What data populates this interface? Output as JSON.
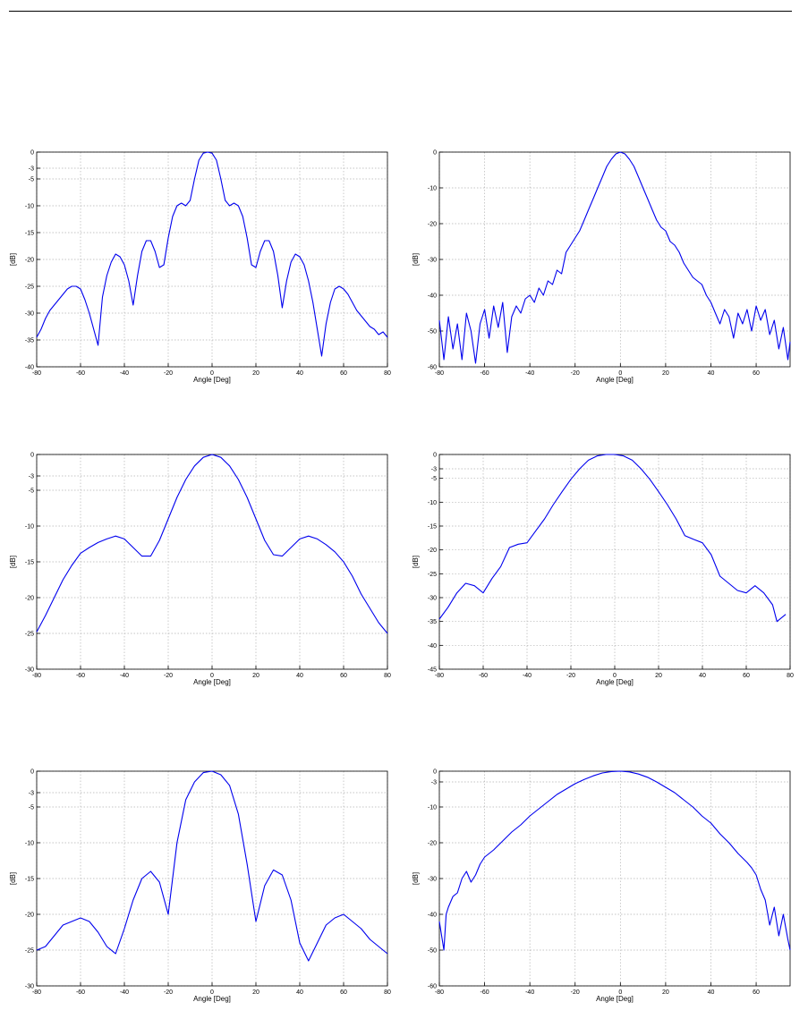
{
  "header": {
    "rule": true
  },
  "chart_data": [
    {
      "type": "line",
      "xlabel": "Angle [Deg]",
      "ylabel": "[dB]",
      "xlim": [
        -80,
        80
      ],
      "ylim": [
        -40,
        0
      ],
      "xticks": [
        -80,
        -60,
        -40,
        -20,
        0,
        20,
        40,
        60,
        80
      ],
      "yticks": [
        0,
        -3,
        -5,
        -10,
        -15,
        -20,
        -25,
        -30,
        -35,
        -40
      ],
      "grid": true,
      "line_color": "#0000ee",
      "series": [
        {
          "x": [
            -80,
            -78,
            -76,
            -74,
            -72,
            -70,
            -68,
            -66,
            -64,
            -62,
            -60,
            -58,
            -56,
            -54,
            -52,
            -50,
            -48,
            -46,
            -44,
            -42,
            -40,
            -38,
            -36,
            -34,
            -32,
            -30,
            -28,
            -26,
            -24,
            -22,
            -20,
            -18,
            -16,
            -14,
            -12,
            -10,
            -8,
            -6,
            -4,
            -2,
            0,
            2,
            4,
            6,
            8,
            10,
            12,
            14,
            16,
            18,
            20,
            22,
            24,
            26,
            28,
            30,
            32,
            34,
            36,
            38,
            40,
            42,
            44,
            46,
            48,
            50,
            52,
            54,
            56,
            58,
            60,
            62,
            64,
            66,
            68,
            70,
            72,
            74,
            76,
            78,
            80
          ],
          "y": [
            -34.5,
            -33,
            -31,
            -29.5,
            -28.5,
            -27.5,
            -26.5,
            -25.5,
            -25,
            -25,
            -25.5,
            -27.5,
            -30,
            -33,
            -36,
            -27,
            -23,
            -20.5,
            -19,
            -19.5,
            -21,
            -24,
            -28.5,
            -23,
            -18.5,
            -16.5,
            -16.5,
            -18.5,
            -21.5,
            -21,
            -16,
            -12,
            -10,
            -9.5,
            -10,
            -9,
            -5,
            -1.5,
            -0.2,
            0,
            -0.2,
            -1.5,
            -5,
            -9,
            -10,
            -9.5,
            -10,
            -12,
            -16,
            -21,
            -21.5,
            -18.5,
            -16.5,
            -16.5,
            -18.5,
            -23,
            -29,
            -24,
            -20.5,
            -19,
            -19.5,
            -21,
            -24,
            -28,
            -33,
            -38,
            -32,
            -28,
            -25.5,
            -25,
            -25.5,
            -26.5,
            -28,
            -29.5,
            -30.5,
            -31.5,
            -32.5,
            -33,
            -34,
            -33.5,
            -34.5
          ]
        }
      ]
    },
    {
      "type": "line",
      "xlabel": "Angle [Deg]",
      "ylabel": "[dB]",
      "xlim": [
        -80,
        75
      ],
      "ylim": [
        -60,
        0
      ],
      "xticks": [
        -80,
        -60,
        -40,
        -20,
        0,
        20,
        40,
        60
      ],
      "yticks": [
        0,
        -10,
        -20,
        -30,
        -40,
        -50,
        -60
      ],
      "grid": true,
      "line_color": "#0000ee",
      "series": [
        {
          "x": [
            -80,
            -78,
            -76,
            -74,
            -72,
            -70,
            -68,
            -66,
            -64,
            -62,
            -60,
            -58,
            -56,
            -54,
            -52,
            -50,
            -48,
            -46,
            -44,
            -42,
            -40,
            -38,
            -36,
            -34,
            -32,
            -30,
            -28,
            -26,
            -24,
            -22,
            -20,
            -18,
            -16,
            -14,
            -12,
            -10,
            -8,
            -6,
            -4,
            -2,
            0,
            2,
            4,
            6,
            8,
            10,
            12,
            14,
            16,
            18,
            20,
            22,
            24,
            26,
            28,
            30,
            32,
            34,
            36,
            38,
            40,
            42,
            44,
            46,
            48,
            50,
            52,
            54,
            56,
            58,
            60,
            62,
            64,
            66,
            68,
            70,
            72,
            74,
            75
          ],
          "y": [
            -47,
            -58,
            -46,
            -55,
            -48,
            -58,
            -45,
            -50,
            -59,
            -48,
            -44,
            -52,
            -43,
            -49,
            -42,
            -56,
            -46,
            -43,
            -45,
            -41,
            -40,
            -42,
            -38,
            -40,
            -36,
            -37,
            -33,
            -34,
            -28,
            -26,
            -24,
            -22,
            -19,
            -16,
            -13,
            -10,
            -7,
            -4,
            -2,
            -0.5,
            0,
            -0.5,
            -2,
            -4,
            -7,
            -10,
            -13,
            -16,
            -19,
            -21,
            -22,
            -25,
            -26,
            -28,
            -31,
            -33,
            -35,
            -36,
            -37,
            -40,
            -42,
            -45,
            -48,
            -44,
            -46,
            -52,
            -45,
            -48,
            -44,
            -50,
            -43,
            -47,
            -44,
            -51,
            -47,
            -55,
            -49,
            -58,
            -53
          ]
        }
      ]
    },
    {
      "type": "line",
      "xlabel": "Angle [Deg]",
      "ylabel": "[dB]",
      "xlim": [
        -80,
        80
      ],
      "ylim": [
        -30,
        0
      ],
      "xticks": [
        -80,
        -60,
        -40,
        -20,
        0,
        20,
        40,
        60,
        80
      ],
      "yticks": [
        0,
        -3,
        -5,
        -10,
        -15,
        -20,
        -25,
        -30
      ],
      "grid": true,
      "line_color": "#0000ee",
      "series": [
        {
          "x": [
            -80,
            -76,
            -72,
            -68,
            -64,
            -60,
            -56,
            -52,
            -48,
            -44,
            -40,
            -36,
            -32,
            -28,
            -24,
            -20,
            -16,
            -12,
            -8,
            -4,
            0,
            4,
            8,
            12,
            16,
            20,
            24,
            28,
            32,
            36,
            40,
            44,
            48,
            52,
            56,
            60,
            64,
            68,
            72,
            76,
            80
          ],
          "y": [
            -24.8,
            -22.5,
            -20,
            -17.5,
            -15.5,
            -13.8,
            -13,
            -12.3,
            -11.8,
            -11.4,
            -11.8,
            -13,
            -14.2,
            -14.2,
            -12,
            -9,
            -6,
            -3.5,
            -1.6,
            -0.4,
            0,
            -0.4,
            -1.6,
            -3.5,
            -6,
            -9,
            -12,
            -14,
            -14.2,
            -13,
            -11.8,
            -11.4,
            -11.8,
            -12.6,
            -13.6,
            -15,
            -17,
            -19.5,
            -21.5,
            -23.5,
            -25
          ]
        }
      ]
    },
    {
      "type": "line",
      "xlabel": "Angle [Deg]",
      "ylabel": "[dB]",
      "xlim": [
        -80,
        80
      ],
      "ylim": [
        -45,
        0
      ],
      "xticks": [
        -80,
        -60,
        -40,
        -20,
        0,
        20,
        40,
        60,
        80
      ],
      "yticks": [
        0,
        -3,
        -5,
        -10,
        -15,
        -20,
        -25,
        -30,
        -35,
        -40,
        -45
      ],
      "grid": true,
      "line_color": "#0000ee",
      "series": [
        {
          "x": [
            -80,
            -76,
            -72,
            -68,
            -64,
            -60,
            -56,
            -52,
            -48,
            -44,
            -40,
            -36,
            -32,
            -28,
            -24,
            -20,
            -16,
            -12,
            -8,
            -4,
            0,
            4,
            8,
            12,
            16,
            20,
            24,
            28,
            32,
            36,
            40,
            44,
            48,
            52,
            56,
            60,
            64,
            68,
            72,
            74,
            78
          ],
          "y": [
            -34.5,
            -32,
            -29,
            -27,
            -27.5,
            -29,
            -26,
            -23.5,
            -19.5,
            -18.8,
            -18.5,
            -16,
            -13.5,
            -10.5,
            -7.8,
            -5.2,
            -3,
            -1.2,
            -0.3,
            0,
            0,
            -0.3,
            -1.2,
            -3,
            -5.2,
            -7.8,
            -10.5,
            -13.5,
            -17,
            -17.8,
            -18.5,
            -21,
            -25.5,
            -27,
            -28.5,
            -29,
            -27.5,
            -29,
            -31.5,
            -35,
            -33.5
          ]
        }
      ]
    },
    {
      "type": "line",
      "xlabel": "Angle [Deg]",
      "ylabel": "[dB]",
      "xlim": [
        -80,
        80
      ],
      "ylim": [
        -30,
        0
      ],
      "xticks": [
        -80,
        -60,
        -40,
        -20,
        0,
        20,
        40,
        60,
        80
      ],
      "yticks": [
        0,
        -3,
        -5,
        -10,
        -15,
        -20,
        -25,
        -30
      ],
      "grid": true,
      "line_color": "#0000ee",
      "series": [
        {
          "x": [
            -80,
            -76,
            -72,
            -68,
            -64,
            -60,
            -56,
            -52,
            -48,
            -44,
            -40,
            -36,
            -32,
            -28,
            -24,
            -20,
            -16,
            -12,
            -8,
            -4,
            0,
            4,
            8,
            12,
            16,
            20,
            24,
            28,
            32,
            36,
            40,
            44,
            48,
            52,
            56,
            60,
            64,
            68,
            72,
            76,
            80
          ],
          "y": [
            -25,
            -24.5,
            -23,
            -21.5,
            -21,
            -20.5,
            -21,
            -22.5,
            -24.5,
            -25.5,
            -22,
            -18,
            -15,
            -14,
            -15.5,
            -20,
            -10,
            -4,
            -1.5,
            -0.2,
            0,
            -0.5,
            -2,
            -6,
            -13,
            -21,
            -16,
            -13.8,
            -14.5,
            -18,
            -24,
            -26.5,
            -24,
            -21.5,
            -20.5,
            -20,
            -21,
            -22,
            -23.5,
            -24.5,
            -25.5
          ]
        }
      ]
    },
    {
      "type": "line",
      "xlabel": "Angle [Deg]",
      "ylabel": "[dB]",
      "xlim": [
        -80,
        75
      ],
      "ylim": [
        -60,
        0
      ],
      "xticks": [
        -80,
        -60,
        -40,
        -20,
        0,
        20,
        40,
        60
      ],
      "yticks": [
        0,
        -3,
        -10,
        -20,
        -30,
        -40,
        -50,
        -60
      ],
      "grid": true,
      "line_color": "#0000ee",
      "series": [
        {
          "x": [
            -80,
            -78,
            -77,
            -76,
            -74,
            -72,
            -70,
            -68,
            -66,
            -64,
            -62,
            -60,
            -56,
            -52,
            -48,
            -44,
            -40,
            -36,
            -32,
            -28,
            -24,
            -20,
            -16,
            -12,
            -8,
            -4,
            0,
            4,
            8,
            12,
            16,
            20,
            24,
            28,
            32,
            36,
            40,
            44,
            48,
            52,
            56,
            58,
            60,
            62,
            64,
            66,
            68,
            70,
            72,
            74,
            75
          ],
          "y": [
            -42,
            -50,
            -40,
            -38,
            -35,
            -34,
            -30,
            -28,
            -31,
            -29,
            -26,
            -24,
            -22,
            -19.5,
            -17,
            -15,
            -12.5,
            -10.5,
            -8.5,
            -6.5,
            -5,
            -3.5,
            -2.3,
            -1.3,
            -0.5,
            -0.1,
            0,
            -0.2,
            -0.8,
            -1.7,
            -3,
            -4.5,
            -6,
            -8,
            -10,
            -12.5,
            -14.5,
            -17.5,
            -20,
            -23,
            -25.5,
            -27,
            -29,
            -33,
            -36,
            -43,
            -38,
            -46,
            -40,
            -47,
            -50
          ]
        }
      ]
    }
  ]
}
